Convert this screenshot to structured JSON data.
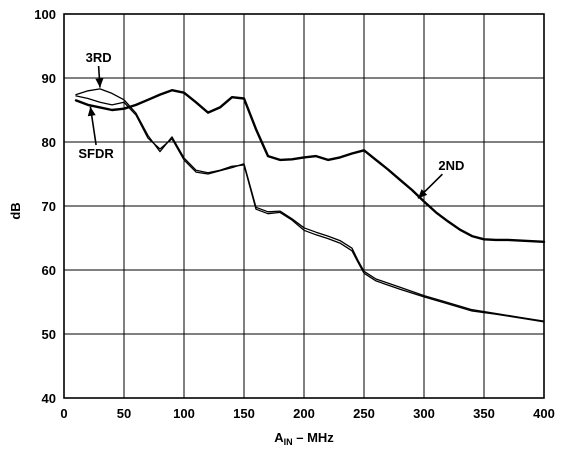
{
  "chart_data": {
    "type": "line",
    "title": "",
    "xlabel": "A",
    "xlabel_sub": "IN",
    "xlabel_suffix": " – MHz",
    "ylabel": "dB",
    "xlim": [
      0,
      400
    ],
    "ylim": [
      40,
      100
    ],
    "x_ticks": [
      0,
      50,
      100,
      150,
      200,
      250,
      300,
      350,
      400
    ],
    "y_ticks": [
      40,
      50,
      60,
      70,
      80,
      90,
      100
    ],
    "grid": true,
    "legend": "none",
    "series": [
      {
        "name": "2ND",
        "x": [
          10,
          20,
          30,
          40,
          50,
          60,
          70,
          80,
          90,
          100,
          110,
          120,
          130,
          140,
          150,
          160,
          170,
          180,
          190,
          200,
          210,
          220,
          230,
          240,
          250,
          260,
          270,
          280,
          290,
          300,
          310,
          320,
          330,
          340,
          350,
          360,
          370,
          380,
          390,
          400
        ],
        "y": [
          86.5,
          85.8,
          85.4,
          85.0,
          85.2,
          85.8,
          86.6,
          87.4,
          88.1,
          87.7,
          86.2,
          84.6,
          85.4,
          87.0,
          86.8,
          82.0,
          77.8,
          77.2,
          77.3,
          77.6,
          77.8,
          77.2,
          77.6,
          78.2,
          78.7,
          77.2,
          75.7,
          74.1,
          72.5,
          70.7,
          69.0,
          67.6,
          66.3,
          65.3,
          64.8,
          64.7,
          64.7,
          64.6,
          64.5,
          64.4
        ]
      },
      {
        "name": "3RD",
        "x": [
          10,
          20,
          30,
          40,
          50,
          60,
          70,
          80,
          90,
          100,
          110,
          120,
          130,
          140,
          150,
          160,
          170,
          180,
          190,
          200,
          210,
          220,
          230,
          240,
          245,
          250,
          260,
          280,
          300,
          320,
          340,
          360,
          380,
          400
        ],
        "y": [
          87.4,
          88.0,
          88.3,
          87.6,
          86.6,
          84.5,
          81.0,
          78.5,
          80.8,
          77.5,
          75.6,
          75.2,
          75.6,
          76.2,
          76.4,
          69.5,
          68.8,
          69.0,
          67.8,
          66.2,
          65.5,
          64.9,
          64.2,
          63.0,
          61.2,
          59.5,
          58.3,
          57.0,
          55.8,
          54.7,
          53.6,
          53.1,
          52.5,
          51.9
        ]
      },
      {
        "name": "SFDR",
        "x": [
          10,
          20,
          30,
          40,
          50,
          60,
          70,
          80,
          90,
          100,
          110,
          120,
          130,
          140,
          150,
          160,
          170,
          180,
          190,
          200,
          210,
          220,
          230,
          240,
          245,
          250,
          260,
          280,
          300,
          320,
          340,
          360,
          380,
          400
        ],
        "y": [
          87.2,
          86.8,
          86.2,
          85.8,
          86.2,
          84.2,
          80.6,
          78.9,
          80.5,
          77.2,
          75.3,
          75.0,
          75.5,
          76.0,
          76.6,
          69.8,
          69.1,
          69.2,
          68.0,
          66.6,
          65.9,
          65.3,
          64.6,
          63.4,
          61.5,
          59.8,
          58.6,
          57.3,
          56.0,
          54.9,
          53.8,
          53.2,
          52.6,
          52.0
        ]
      }
    ],
    "annotations": [
      {
        "label": "3RD",
        "x": 18,
        "y": 92.5,
        "arrow_to": [
          30,
          88.5
        ]
      },
      {
        "label": "SFDR",
        "x": 12,
        "y": 77.5,
        "arrow_to": [
          22,
          85.5
        ]
      },
      {
        "label": "2ND",
        "x": 312,
        "y": 75.6,
        "arrow_to": [
          295,
          71.2
        ]
      }
    ]
  }
}
